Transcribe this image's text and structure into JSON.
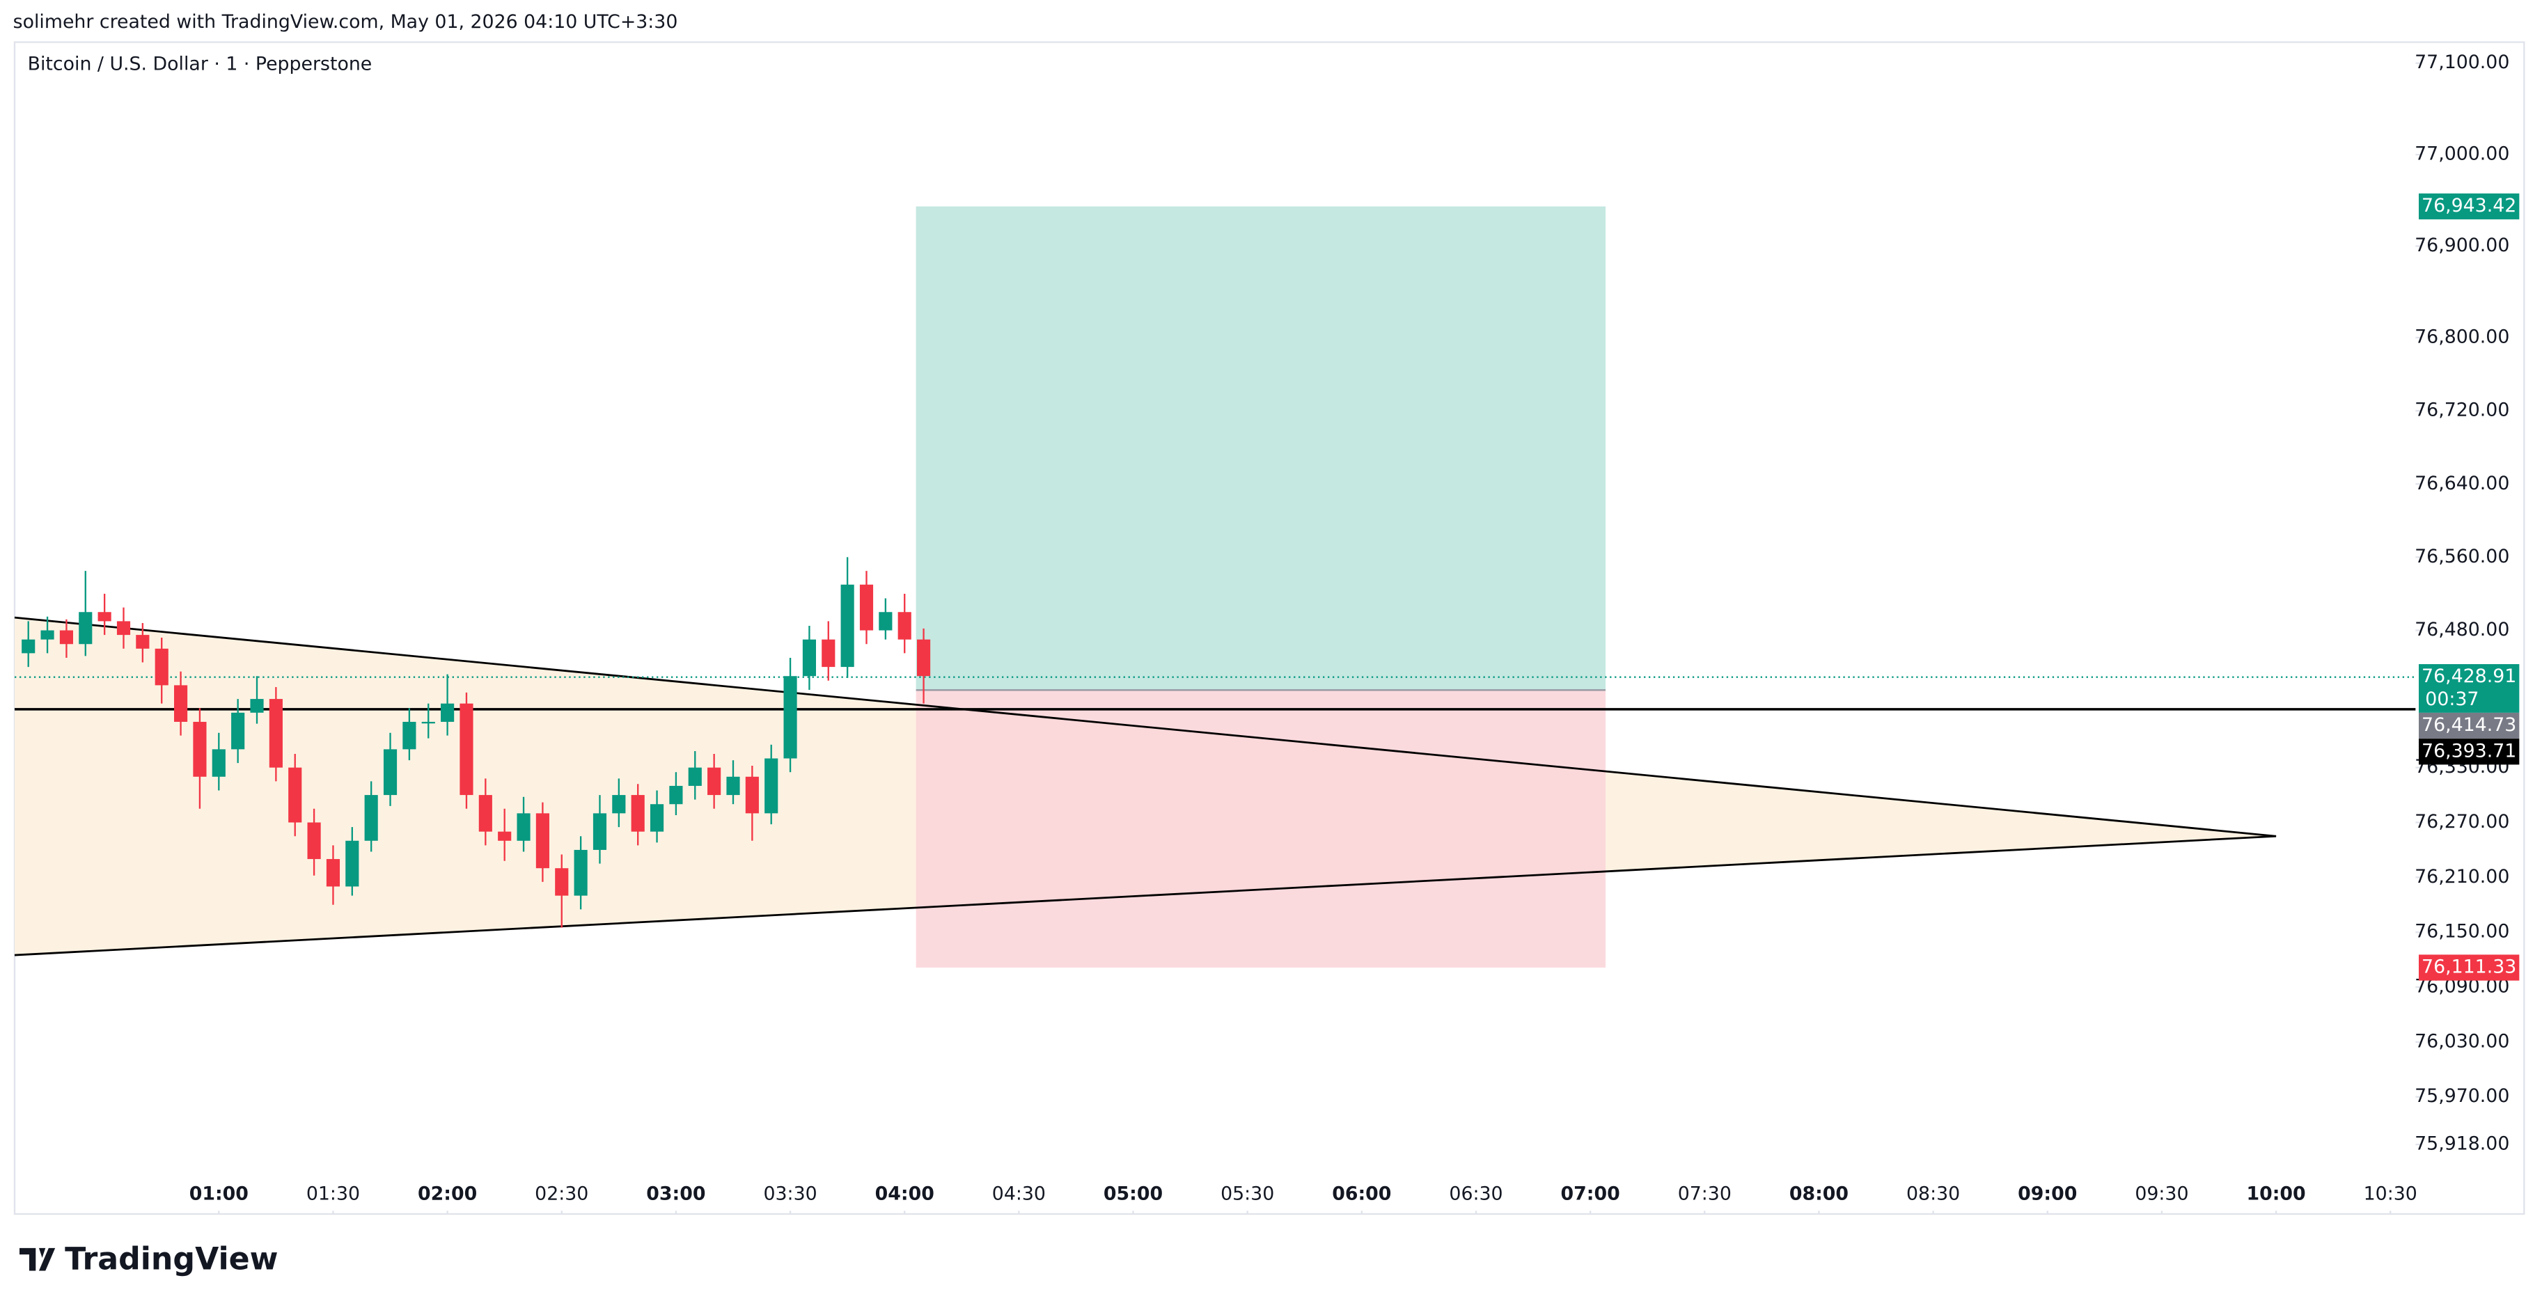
{
  "header": "solimehr created with TradingView.com, May 01, 2026 04:10 UTC+3:30",
  "logo": "TradingView",
  "chart_data": {
    "type": "candlestick",
    "title": "Bitcoin / U.S. Dollar · 1 · Pepperstone",
    "up_color": "#089981",
    "down_color": "#f23645",
    "x": [
      10,
      15,
      20,
      25,
      30,
      35,
      40,
      45,
      50,
      55,
      60,
      65,
      70,
      75,
      80,
      85,
      90,
      95,
      100,
      105,
      110,
      115,
      120,
      125,
      130,
      135,
      140,
      145,
      150,
      155,
      160,
      165,
      170,
      175,
      180,
      185,
      190,
      195,
      200,
      205,
      210,
      215,
      220,
      225,
      230,
      235,
      240,
      245
    ],
    "open": [
      76455,
      76470,
      76480,
      76465,
      76500,
      76490,
      76475,
      76460,
      76420,
      76380,
      76320,
      76350,
      76390,
      76405,
      76330,
      76270,
      76230,
      76200,
      76250,
      76300,
      76350,
      76380,
      76380,
      76400,
      76300,
      76260,
      76250,
      76280,
      76220,
      76190,
      76240,
      76280,
      76300,
      76260,
      76290,
      76310,
      76330,
      76300,
      76320,
      76280,
      76340,
      76430,
      76470,
      76440,
      76530,
      76480,
      76500,
      76470
    ],
    "high": [
      76490,
      76495,
      76492,
      76545,
      76520,
      76505,
      76488,
      76472,
      76435,
      76395,
      76368,
      76405,
      76430,
      76418,
      76345,
      76285,
      76245,
      76265,
      76315,
      76368,
      76395,
      76400,
      76432,
      76412,
      76318,
      76285,
      76298,
      76292,
      76235,
      76255,
      76300,
      76318,
      76312,
      76305,
      76325,
      76348,
      76345,
      76338,
      76332,
      76355,
      76450,
      76485,
      76490,
      76560,
      76545,
      76515,
      76520,
      76482
    ],
    "low": [
      76440,
      76455,
      76450,
      76452,
      76475,
      76460,
      76445,
      76400,
      76365,
      76285,
      76305,
      76335,
      76378,
      76315,
      76255,
      76212,
      76180,
      76190,
      76238,
      76288,
      76338,
      76362,
      76365,
      76285,
      76245,
      76228,
      76238,
      76205,
      76155,
      76175,
      76225,
      76265,
      76245,
      76248,
      76278,
      76295,
      76285,
      76290,
      76250,
      76268,
      76325,
      76415,
      76425,
      76428,
      76465,
      76470,
      76455,
      76400
    ],
    "close": [
      76470,
      76480,
      76465,
      76500,
      76490,
      76475,
      76460,
      76420,
      76380,
      76320,
      76350,
      76390,
      76405,
      76330,
      76270,
      76230,
      76200,
      76250,
      76300,
      76350,
      76380,
      76380,
      76400,
      76300,
      76260,
      76250,
      76280,
      76220,
      76190,
      76240,
      76280,
      76300,
      76260,
      76290,
      76310,
      76330,
      76300,
      76320,
      76280,
      76340,
      76430,
      76470,
      76440,
      76530,
      76480,
      76500,
      76470,
      76430
    ],
    "xlim": [
      6.4,
      636.6
    ],
    "xticks": [
      {
        "value": 60,
        "label": "01:00"
      },
      {
        "value": 90,
        "label": "01:30"
      },
      {
        "value": 120,
        "label": "02:00"
      },
      {
        "value": 150,
        "label": "02:30"
      },
      {
        "value": 180,
        "label": "03:00"
      },
      {
        "value": 210,
        "label": "03:30"
      },
      {
        "value": 240,
        "label": "04:00"
      },
      {
        "value": 270,
        "label": "04:30"
      },
      {
        "value": 300,
        "label": "05:00"
      },
      {
        "value": 330,
        "label": "05:30"
      },
      {
        "value": 360,
        "label": "06:00"
      },
      {
        "value": 390,
        "label": "06:30"
      },
      {
        "value": 420,
        "label": "07:00"
      },
      {
        "value": 450,
        "label": "07:30"
      },
      {
        "value": 480,
        "label": "08:00"
      },
      {
        "value": 510,
        "label": "08:30"
      },
      {
        "value": 540,
        "label": "09:00"
      },
      {
        "value": 570,
        "label": "09:30"
      },
      {
        "value": 600,
        "label": "10:00"
      },
      {
        "value": 630,
        "label": "10:30"
      }
    ],
    "ylim": [
      75842,
      77123
    ],
    "yticks": [
      {
        "value": 77100,
        "label": "77,100.00"
      },
      {
        "value": 77000,
        "label": "77,000.00"
      },
      {
        "value": 76900,
        "label": "76,900.00"
      },
      {
        "value": 76800,
        "label": "76,800.00"
      },
      {
        "value": 76720,
        "label": "76,720.00"
      },
      {
        "value": 76640,
        "label": "76,640.00"
      },
      {
        "value": 76560,
        "label": "76,560.00"
      },
      {
        "value": 76480,
        "label": "76,480.00"
      },
      {
        "value": 76330,
        "label": "76,330.00"
      },
      {
        "value": 76270,
        "label": "76,270.00"
      },
      {
        "value": 76210,
        "label": "76,210.00"
      },
      {
        "value": 76150,
        "label": "76,150.00"
      },
      {
        "value": 76090,
        "label": "76,090.00"
      },
      {
        "value": 76030,
        "label": "76,030.00"
      },
      {
        "value": 75970,
        "label": "75,970.00"
      },
      {
        "value": 75918,
        "label": "75,918.00"
      }
    ],
    "triangle": {
      "x": [
        6.4,
        600
      ],
      "upper": [
        76494,
        76255
      ],
      "lower": [
        76125,
        76255
      ],
      "color": "#fdf2e2"
    },
    "position": {
      "x": [
        243,
        424
      ],
      "entry": 76414.73,
      "target": 76943.42,
      "stop": 76111.33,
      "profit_color": "#c2e7df",
      "loss_color": "#fad4d8"
    },
    "hline": 76393.71,
    "current_price": 76428.91,
    "countdown": "00:37",
    "price_labels": [
      {
        "value": 76943.42,
        "label": "76,943.42",
        "color": "#089981"
      },
      {
        "value": 76428.91,
        "label": "76,428.91",
        "color": "#089981"
      },
      {
        "value": 76414.73,
        "label": "76,414.73",
        "color": "#787b86"
      },
      {
        "value": 76393.71,
        "label": "76,393.71",
        "color": "#000000"
      },
      {
        "value": 76111.33,
        "label": "76,111.33",
        "color": "#f23645"
      }
    ]
  }
}
